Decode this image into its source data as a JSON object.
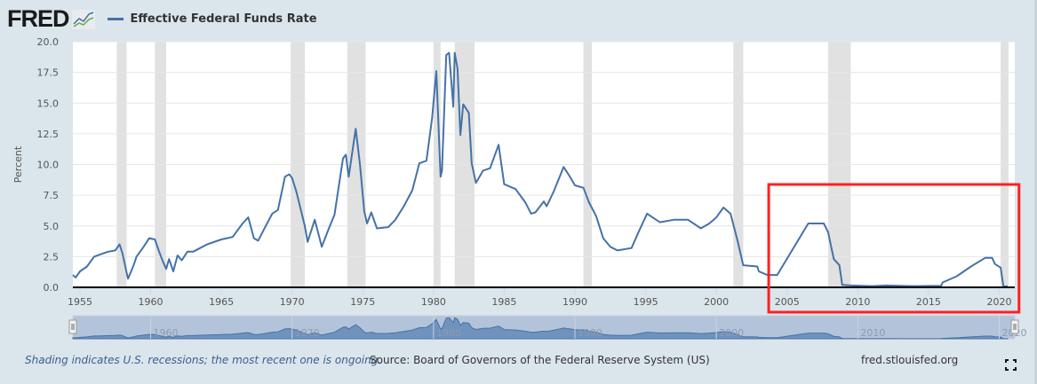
{
  "header": {
    "logo": "FRED",
    "logo_icon": "line-chart-icon",
    "legend_label": "Effective Federal Funds Rate"
  },
  "footer": {
    "note": "Shading indicates U.S. recessions; the most recent one is ongoing.",
    "source": "Source: Board of Governors of the Federal Reserve System (US)",
    "site": "fred.stlouisfed.org",
    "fullscreen_icon": "fullscreen-icon"
  },
  "colors": {
    "series": "#4572a7",
    "recession": "#e1e1e1",
    "highlight_box": "#ff2020",
    "navigator": "#b3c4da"
  },
  "chart_data": {
    "type": "line",
    "title": "",
    "ylabel": "Percent",
    "xlabel": "",
    "ylim": [
      0,
      20
    ],
    "xlim": [
      1954.5,
      2021.1
    ],
    "yticks": [
      "0.0",
      "2.5",
      "5.0",
      "7.5",
      "10.0",
      "12.5",
      "15.0",
      "17.5",
      "20.0"
    ],
    "xticks": [
      "1955",
      "1960",
      "1965",
      "1970",
      "1975",
      "1980",
      "1985",
      "1990",
      "1995",
      "2000",
      "2005",
      "2010",
      "2015",
      "2020"
    ],
    "navigator_ticks": [
      "1960",
      "1970",
      "1980",
      "1990",
      "2000",
      "2010",
      "2020"
    ],
    "grid": true,
    "legend": "top-left",
    "recessions": [
      [
        1957.6,
        1958.3
      ],
      [
        1960.3,
        1961.1
      ],
      [
        1969.9,
        1970.9
      ],
      [
        1973.9,
        1975.2
      ],
      [
        1980.0,
        1980.5
      ],
      [
        1981.5,
        1982.9
      ],
      [
        1990.6,
        1991.2
      ],
      [
        2001.2,
        2001.9
      ],
      [
        2007.9,
        2009.5
      ],
      [
        2020.1,
        2020.4
      ]
    ],
    "highlight_range": {
      "x": [
        2003.7,
        2021.4
      ]
    },
    "series": [
      {
        "name": "Effective Federal Funds Rate",
        "points": [
          [
            1954.5,
            1.0
          ],
          [
            1954.7,
            0.8
          ],
          [
            1955,
            1.3
          ],
          [
            1955.5,
            1.7
          ],
          [
            1956,
            2.5
          ],
          [
            1956.5,
            2.7
          ],
          [
            1957,
            2.9
          ],
          [
            1957.5,
            3.0
          ],
          [
            1957.8,
            3.5
          ],
          [
            1958,
            2.8
          ],
          [
            1958.3,
            1.2
          ],
          [
            1958.4,
            0.7
          ],
          [
            1958.8,
            1.8
          ],
          [
            1959,
            2.5
          ],
          [
            1959.5,
            3.3
          ],
          [
            1959.9,
            4.0
          ],
          [
            1960.3,
            3.9
          ],
          [
            1960.6,
            2.9
          ],
          [
            1960.9,
            2.0
          ],
          [
            1961.1,
            1.5
          ],
          [
            1961.3,
            2.3
          ],
          [
            1961.6,
            1.3
          ],
          [
            1961.9,
            2.6
          ],
          [
            1962.2,
            2.2
          ],
          [
            1962.6,
            2.9
          ],
          [
            1963,
            2.9
          ],
          [
            1963.5,
            3.2
          ],
          [
            1964,
            3.5
          ],
          [
            1965,
            3.9
          ],
          [
            1965.8,
            4.1
          ],
          [
            1966.5,
            5.2
          ],
          [
            1966.9,
            5.7
          ],
          [
            1967.3,
            4.0
          ],
          [
            1967.6,
            3.8
          ],
          [
            1968,
            4.7
          ],
          [
            1968.6,
            6.0
          ],
          [
            1969,
            6.3
          ],
          [
            1969.5,
            9.0
          ],
          [
            1969.8,
            9.2
          ],
          [
            1970,
            8.9
          ],
          [
            1970.3,
            7.8
          ],
          [
            1970.9,
            5.0
          ],
          [
            1971.1,
            3.7
          ],
          [
            1971.6,
            5.5
          ],
          [
            1971.9,
            4.2
          ],
          [
            1972.1,
            3.3
          ],
          [
            1972.6,
            4.8
          ],
          [
            1973,
            5.9
          ],
          [
            1973.6,
            10.5
          ],
          [
            1973.8,
            10.8
          ],
          [
            1974,
            9.0
          ],
          [
            1974.5,
            12.9
          ],
          [
            1974.8,
            10.0
          ],
          [
            1975.1,
            6.2
          ],
          [
            1975.3,
            5.2
          ],
          [
            1975.6,
            6.1
          ],
          [
            1976,
            4.8
          ],
          [
            1976.8,
            4.9
          ],
          [
            1977.3,
            5.5
          ],
          [
            1977.9,
            6.6
          ],
          [
            1978.5,
            7.9
          ],
          [
            1979,
            10.1
          ],
          [
            1979.5,
            10.3
          ],
          [
            1979.9,
            13.8
          ],
          [
            1980.2,
            17.6
          ],
          [
            1980.5,
            9.0
          ],
          [
            1980.6,
            9.5
          ],
          [
            1980.9,
            18.9
          ],
          [
            1981.1,
            19.1
          ],
          [
            1981.4,
            14.7
          ],
          [
            1981.5,
            19.1
          ],
          [
            1981.7,
            17.8
          ],
          [
            1981.9,
            12.4
          ],
          [
            1982.1,
            14.9
          ],
          [
            1982.5,
            14.2
          ],
          [
            1982.7,
            10.1
          ],
          [
            1983,
            8.5
          ],
          [
            1983.5,
            9.5
          ],
          [
            1984,
            9.7
          ],
          [
            1984.6,
            11.6
          ],
          [
            1985,
            8.4
          ],
          [
            1985.8,
            8.0
          ],
          [
            1986.5,
            6.9
          ],
          [
            1986.9,
            6.0
          ],
          [
            1987.2,
            6.1
          ],
          [
            1987.8,
            7.0
          ],
          [
            1988,
            6.6
          ],
          [
            1988.5,
            7.8
          ],
          [
            1989.2,
            9.8
          ],
          [
            1989.6,
            9.1
          ],
          [
            1990,
            8.3
          ],
          [
            1990.6,
            8.1
          ],
          [
            1991,
            6.9
          ],
          [
            1991.5,
            5.8
          ],
          [
            1992,
            4.0
          ],
          [
            1992.5,
            3.3
          ],
          [
            1993,
            3.0
          ],
          [
            1994,
            3.2
          ],
          [
            1994.5,
            4.5
          ],
          [
            1995.1,
            6.0
          ],
          [
            1996,
            5.3
          ],
          [
            1997,
            5.5
          ],
          [
            1998,
            5.5
          ],
          [
            1998.9,
            4.8
          ],
          [
            1999.5,
            5.2
          ],
          [
            2000,
            5.7
          ],
          [
            2000.5,
            6.5
          ],
          [
            2001,
            6.0
          ],
          [
            2001.5,
            3.8
          ],
          [
            2001.9,
            1.8
          ],
          [
            2002.9,
            1.7
          ],
          [
            2003,
            1.3
          ],
          [
            2003.6,
            1.0
          ],
          [
            2004.3,
            1.0
          ],
          [
            2006.5,
            5.2
          ],
          [
            2007.6,
            5.2
          ],
          [
            2007.9,
            4.5
          ],
          [
            2008.3,
            2.3
          ],
          [
            2008.7,
            1.8
          ],
          [
            2008.9,
            0.2
          ],
          [
            2009.5,
            0.15
          ],
          [
            2011,
            0.1
          ],
          [
            2012,
            0.15
          ],
          [
            2014,
            0.1
          ],
          [
            2015.9,
            0.13
          ],
          [
            2016,
            0.4
          ],
          [
            2017,
            0.9
          ],
          [
            2018,
            1.7
          ],
          [
            2019,
            2.4
          ],
          [
            2019.5,
            2.4
          ],
          [
            2019.7,
            1.9
          ],
          [
            2020.1,
            1.6
          ],
          [
            2020.3,
            0.05
          ],
          [
            2020.6,
            0.09
          ]
        ]
      }
    ]
  }
}
